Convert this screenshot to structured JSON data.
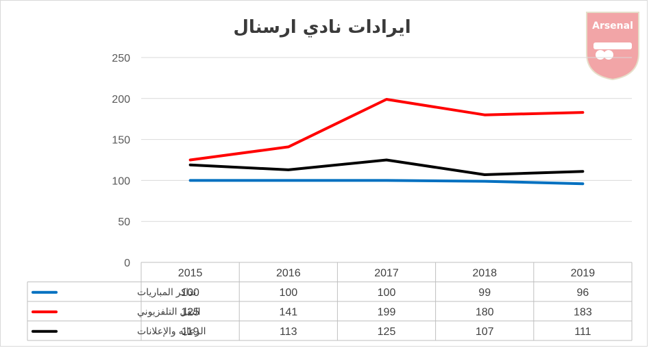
{
  "chart_data": {
    "type": "line",
    "title": "ايرادات نادي ارسنال",
    "categories": [
      "2015",
      "2016",
      "2017",
      "2018",
      "2019"
    ],
    "ylim": [
      0,
      250
    ],
    "yticks": [
      "0",
      "50",
      "100",
      "150",
      "200",
      "250"
    ],
    "grid": true,
    "legend_placement": "data-table-left",
    "series": [
      {
        "name": "تذاكر المباريات",
        "color": "#0070c0",
        "values": [
          100,
          100,
          100,
          99,
          96
        ]
      },
      {
        "name": "النقل التلفزيوني",
        "color": "#ff0000",
        "values": [
          125,
          141,
          199,
          180,
          183
        ]
      },
      {
        "name": "الرعايه والإعلانات",
        "color": "#000000",
        "values": [
          119,
          113,
          125,
          107,
          111
        ]
      }
    ]
  },
  "logo": {
    "text": "Arsenal",
    "color": "#db0007"
  }
}
